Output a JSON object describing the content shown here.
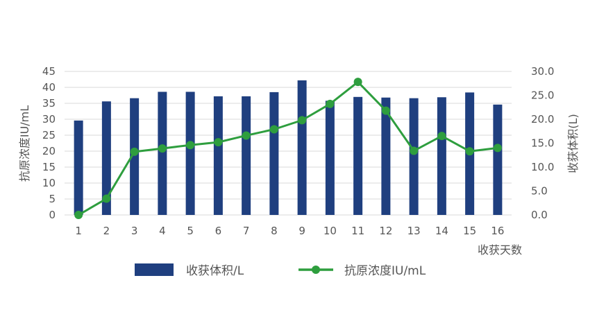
{
  "chart_data": {
    "type": "bar+line",
    "categories": [
      "1",
      "2",
      "3",
      "4",
      "5",
      "6",
      "7",
      "8",
      "9",
      "10",
      "11",
      "12",
      "13",
      "14",
      "15",
      "16"
    ],
    "xlabel": "收获天数",
    "y_left": {
      "label": "抗原浓度IU/mL",
      "ticks": [
        "0",
        "5",
        "10",
        "15",
        "20",
        "25",
        "30",
        "35",
        "40",
        "45"
      ],
      "lim": [
        0,
        45
      ]
    },
    "y_right": {
      "label": "收获体积(L)",
      "ticks": [
        "0.0",
        "5.0",
        "10.0",
        "15.0",
        "20.0",
        "25.0",
        "30.0"
      ],
      "lim": [
        0,
        30
      ]
    },
    "series": [
      {
        "name": "收获体积/L",
        "type": "bar",
        "axis": "left",
        "values": [
          29.6,
          35.6,
          36.6,
          38.6,
          38.6,
          37.2,
          37.2,
          38.5,
          42.2,
          35.8,
          37.0,
          36.8,
          36.6,
          36.9,
          38.4,
          34.6
        ]
      },
      {
        "name": "抗原浓度IU/mL",
        "type": "line",
        "axis": "right",
        "values": [
          0.0,
          3.4,
          13.2,
          13.9,
          14.6,
          15.2,
          16.6,
          17.9,
          19.8,
          23.2,
          27.8,
          21.8,
          13.4,
          16.5,
          13.3,
          14.0
        ]
      }
    ],
    "legend_position": "bottom",
    "colors": {
      "bar": "#1f3f7f",
      "line": "#2e9e3e",
      "grid": "#d9d9d9",
      "text": "#555555"
    },
    "grid": true
  }
}
